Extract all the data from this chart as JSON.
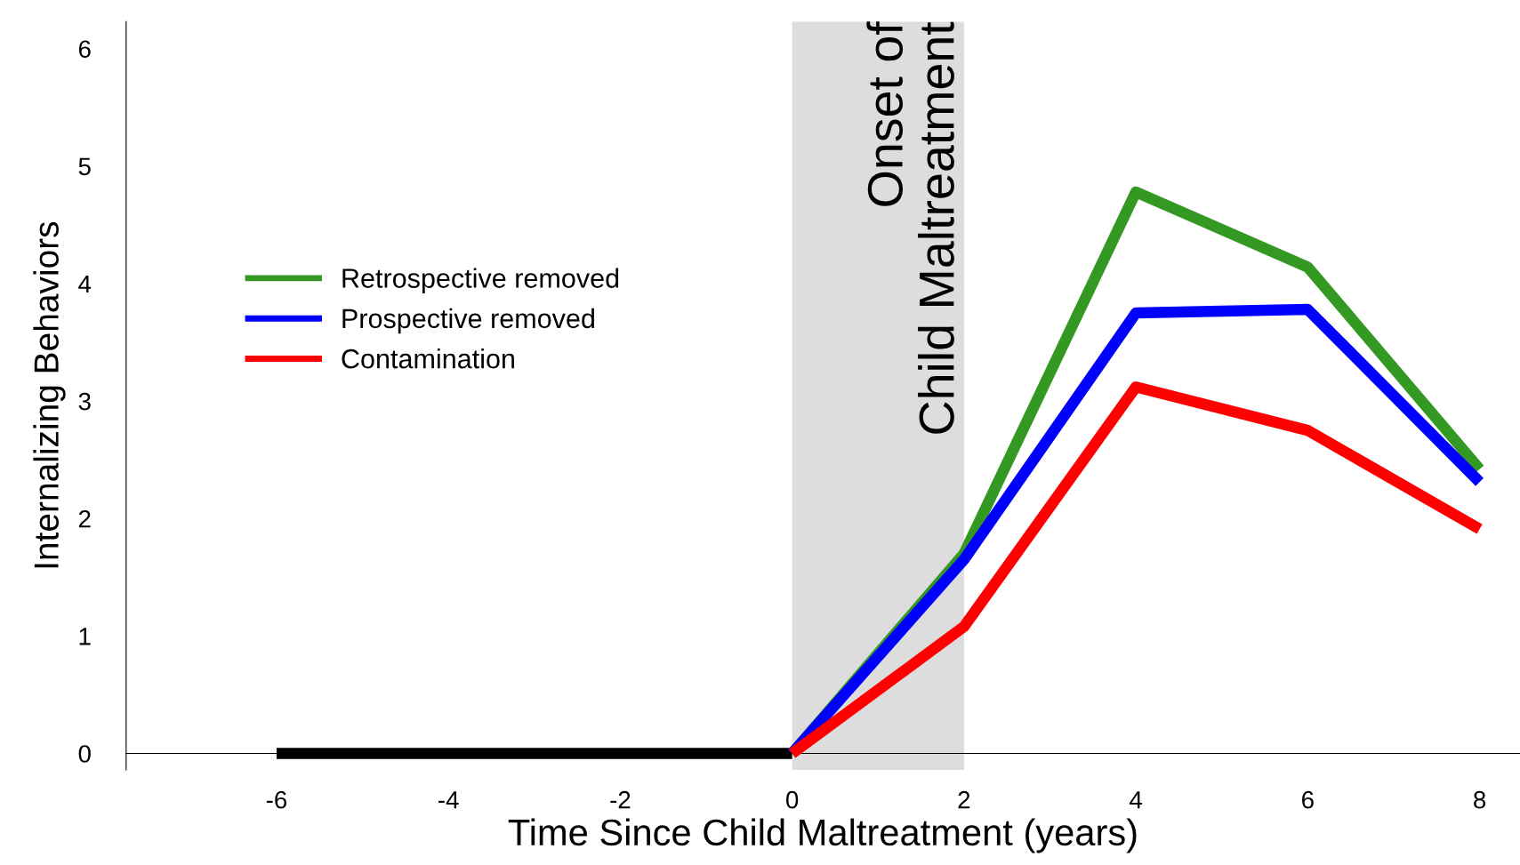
{
  "chart_data": {
    "type": "line",
    "xlabel": "Time Since Child Maltreatment (years)",
    "ylabel": "Internalizing Behaviors",
    "xlim": [
      -7.75,
      8.47
    ],
    "ylim": [
      -0.14,
      6.23
    ],
    "xticks": [
      -6,
      -4,
      -2,
      0,
      2,
      4,
      6,
      8
    ],
    "yticks": [
      0,
      1,
      2,
      3,
      4,
      5,
      6
    ],
    "grid": false,
    "legend": "left",
    "marker": "none",
    "line_style": "solid",
    "bands": [
      {
        "axis": "x",
        "from": 0,
        "to": 2,
        "label": "Onset of\nChild Maltreatment",
        "color": "#dddddd"
      }
    ],
    "series": [
      {
        "color": "#000000",
        "x": [
          -6,
          0
        ],
        "values": [
          0,
          0
        ]
      },
      {
        "name": "Retrospective removed",
        "color": "#339922",
        "x": [
          0,
          2,
          4,
          6,
          8
        ],
        "values": [
          0,
          1.7,
          4.78,
          4.14,
          2.42
        ]
      },
      {
        "name": "Prospective removed",
        "color": "#0000ff",
        "x": [
          0,
          2,
          4,
          6,
          8
        ],
        "values": [
          0,
          1.65,
          3.75,
          3.78,
          2.31
        ]
      },
      {
        "name": "Contamination",
        "color": "#ff0000",
        "x": [
          0,
          2,
          4,
          6,
          8
        ],
        "values": [
          0,
          1.08,
          3.12,
          2.75,
          1.91
        ]
      }
    ]
  }
}
